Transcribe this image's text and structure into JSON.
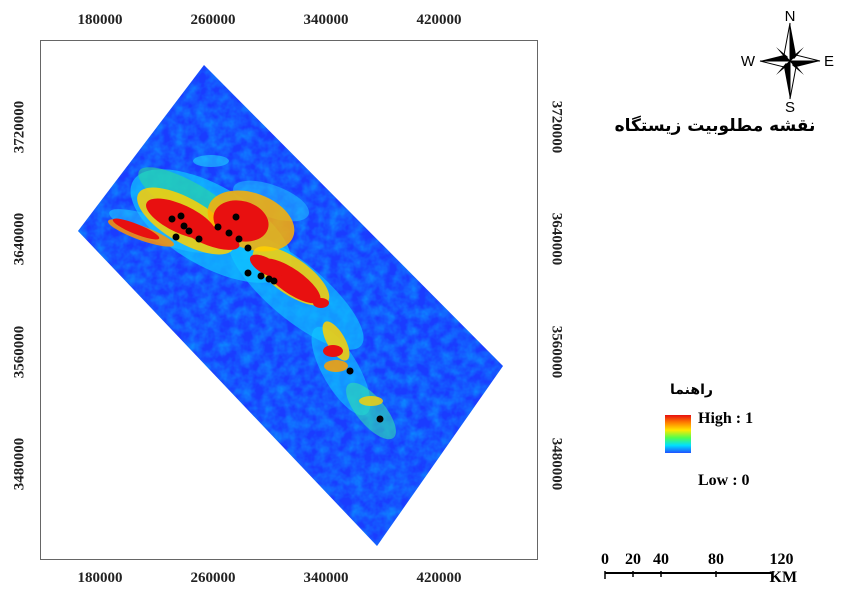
{
  "map": {
    "x_ticks": [
      "180000",
      "260000",
      "340000",
      "420000"
    ],
    "y_ticks": [
      "3720000",
      "3640000",
      "3560000",
      "3480000"
    ],
    "value_range": [
      0,
      1
    ],
    "color_ramp": [
      "#2050ff",
      "#00e0ff",
      "#50ff50",
      "#ffe800",
      "#ff8000",
      "#e81010"
    ]
  },
  "compass": {
    "n": "N",
    "s": "S",
    "e": "E",
    "w": "W"
  },
  "title": "نقشه مطلوبیت زیستگاه",
  "legend": {
    "title": "راهنما",
    "high": "High : 1",
    "low": "Low : 0"
  },
  "scalebar": {
    "labels": [
      "0",
      "20",
      "40",
      "80",
      "120 KM"
    ]
  },
  "colors": {
    "low": "#2050ff",
    "high": "#e81010",
    "points": "#000000"
  }
}
